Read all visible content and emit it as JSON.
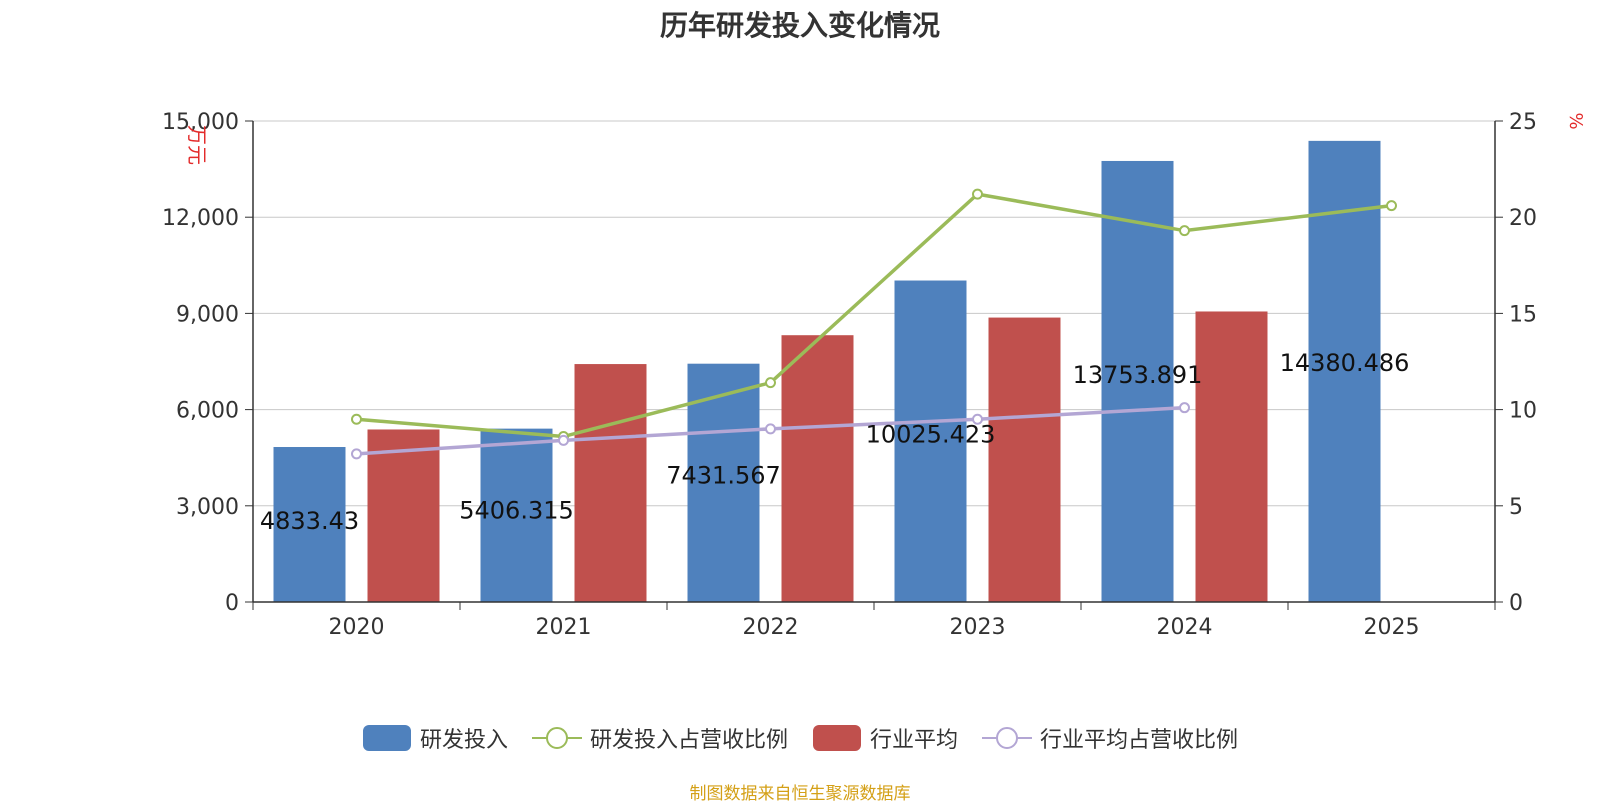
{
  "chart_data": {
    "type": "bar",
    "title": "历年研发投入变化情况",
    "categories": [
      "2020",
      "2021",
      "2022",
      "2023",
      "2024",
      "2025"
    ],
    "y_left_label": "万元",
    "y_right_label": "%",
    "y_left_range": [
      0,
      15000
    ],
    "y_left_ticks": [
      "0",
      "3,000",
      "6,000",
      "9,000",
      "12,000",
      "15,000"
    ],
    "y_right_range": [
      0,
      25
    ],
    "y_right_ticks": [
      "0",
      "5",
      "10",
      "15",
      "20",
      "25"
    ],
    "grid": true,
    "legend_position": "bottom",
    "series": [
      {
        "name": "研发投入",
        "type": "bar",
        "axis": "left",
        "color": "#4f81bd",
        "values": [
          4833.43,
          5406.315,
          7431.567,
          10025.423,
          13753.891,
          14380.486
        ],
        "labels": [
          "4833.43",
          "5406.315",
          "7431.567",
          "10025.423",
          "13753.891",
          "14380.486"
        ]
      },
      {
        "name": "研发投入占营收比例",
        "type": "line",
        "axis": "right",
        "color": "#9bbb59",
        "values": [
          9.5,
          8.6,
          11.4,
          21.2,
          19.3,
          20.6
        ]
      },
      {
        "name": "行业平均",
        "type": "bar",
        "axis": "left",
        "color": "#c0504d",
        "values": [
          5380,
          7420,
          8320,
          8870,
          9060,
          null
        ]
      },
      {
        "name": "行业平均占营收比例",
        "type": "line",
        "axis": "right",
        "color": "#b3a6d4",
        "values": [
          7.7,
          8.4,
          9.0,
          9.5,
          10.1,
          null
        ]
      }
    ]
  },
  "footer": {
    "source": "制图数据来自恒生聚源数据库"
  }
}
